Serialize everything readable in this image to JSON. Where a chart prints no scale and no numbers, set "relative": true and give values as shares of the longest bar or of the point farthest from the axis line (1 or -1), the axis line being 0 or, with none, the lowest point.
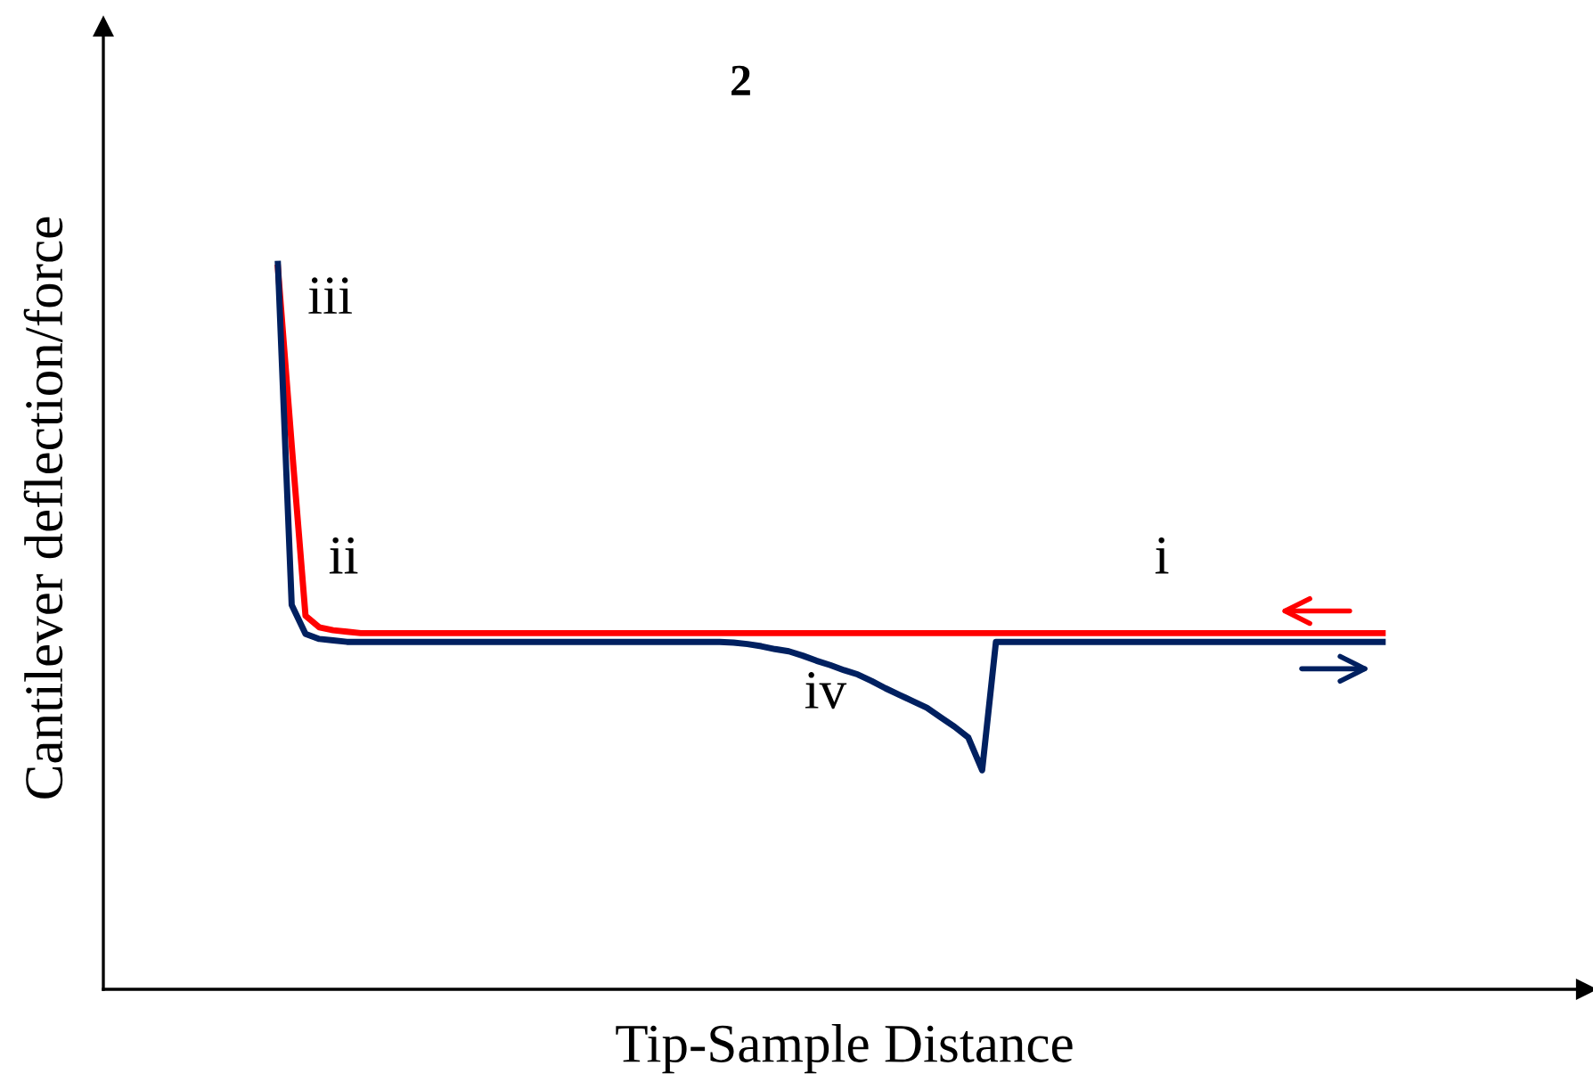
{
  "chart_data": {
    "type": "line",
    "title": "2",
    "xlabel": "Tip-Sample Distance",
    "ylabel": "Cantilever deflection/force",
    "relative": true,
    "legend": false,
    "categories": [
      null,
      null,
      null,
      null,
      null,
      null,
      null,
      null,
      null,
      null,
      null,
      null,
      null,
      null,
      null,
      null,
      null,
      null,
      null,
      null,
      null,
      null,
      null,
      null,
      null,
      null,
      null,
      null,
      null,
      null,
      null,
      null,
      null,
      null,
      null,
      null,
      null,
      null,
      null,
      null,
      null,
      null,
      null,
      null,
      null,
      null,
      null,
      null,
      null,
      null,
      null,
      null,
      null,
      null,
      null,
      null,
      null,
      null,
      null,
      null,
      null,
      null,
      null,
      null,
      null,
      null,
      null,
      null,
      null,
      null,
      null,
      null,
      null,
      null,
      null,
      null,
      null,
      null,
      null,
      null,
      null
    ],
    "series": [
      {
        "color": "#ff0000",
        "values": [
          0.995,
          0.75,
          0.515,
          0.499,
          0.495,
          0.493,
          0.491,
          0.491,
          0.491,
          0.491,
          0.491,
          0.491,
          0.491,
          0.491,
          0.491,
          0.491,
          0.491,
          0.491,
          0.491,
          0.491,
          0.491,
          0.491,
          0.491,
          0.491,
          0.491,
          0.491,
          0.491,
          0.491,
          0.491,
          0.491,
          0.491,
          0.491,
          0.491,
          0.491,
          0.491,
          0.491,
          0.491,
          0.491,
          0.491,
          0.491,
          0.491,
          0.491,
          0.491,
          0.491,
          0.491,
          0.491,
          0.491,
          0.491,
          0.491,
          0.491,
          0.491,
          0.491,
          0.491,
          0.491,
          0.491,
          0.491,
          0.491,
          0.491,
          0.491,
          0.491,
          0.491,
          0.491,
          0.491,
          0.491,
          0.491,
          0.491,
          0.491,
          0.491,
          0.491,
          0.491,
          0.491,
          0.491,
          0.491,
          0.491,
          0.491,
          0.491,
          0.491,
          0.491,
          0.491,
          0.491,
          0.491
        ]
      },
      {
        "color": "#002060",
        "values": [
          1.0,
          0.53,
          0.49,
          0.483,
          0.481,
          0.479,
          0.479,
          0.479,
          0.479,
          0.479,
          0.479,
          0.479,
          0.479,
          0.479,
          0.479,
          0.479,
          0.479,
          0.479,
          0.479,
          0.479,
          0.479,
          0.479,
          0.479,
          0.479,
          0.479,
          0.479,
          0.479,
          0.479,
          0.479,
          0.479,
          0.479,
          0.479,
          0.479,
          0.478,
          0.476,
          0.473,
          0.469,
          0.466,
          0.46,
          0.453,
          0.447,
          0.44,
          0.434,
          0.425,
          0.415,
          0.406,
          0.397,
          0.388,
          0.375,
          0.362,
          0.347,
          0.302,
          0.479,
          0.479,
          0.479,
          0.479,
          0.479,
          0.479,
          0.479,
          0.479,
          0.479,
          0.479,
          0.479,
          0.479,
          0.479,
          0.479,
          0.479,
          0.479,
          0.479,
          0.479,
          0.479,
          0.479,
          0.479,
          0.479,
          0.479,
          0.479,
          0.479,
          0.479,
          0.479,
          0.479,
          0.479
        ]
      }
    ],
    "annotations": [
      "i",
      "ii",
      "iii",
      "iv"
    ]
  }
}
